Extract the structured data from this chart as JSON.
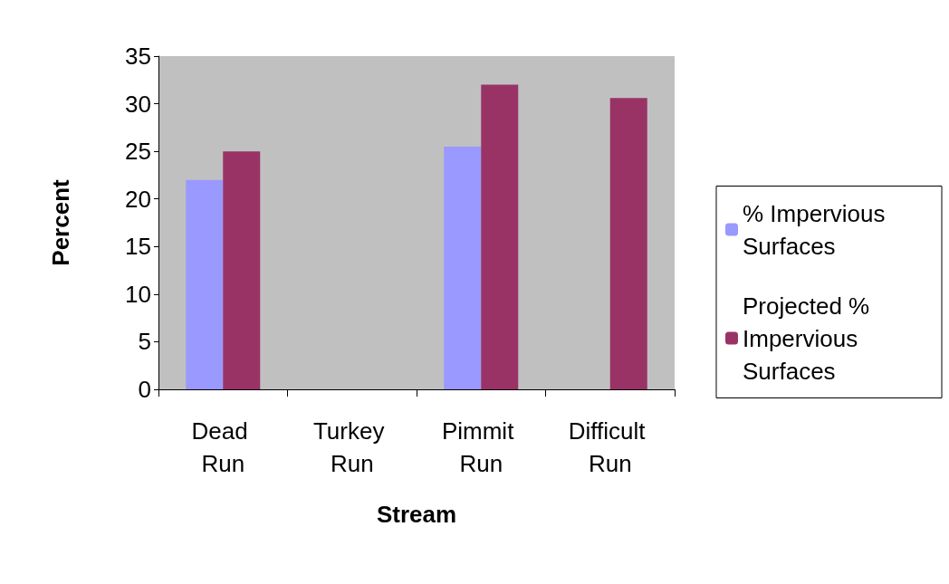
{
  "chart_data": {
    "type": "bar",
    "xlabel": "Stream",
    "ylabel": "Percent",
    "categories": [
      "Dead Run",
      "Turkey Run",
      "Pimmit Run",
      "Difficult Run"
    ],
    "series": [
      {
        "name": "% Impervious Surfaces",
        "color": "#9999ff",
        "values": [
          22,
          0,
          25.5,
          null
        ]
      },
      {
        "name": "Projected % Impervious Surfaces",
        "color": "#993366",
        "values": [
          25,
          0,
          32,
          30.6
        ]
      }
    ],
    "ylim": [
      0,
      35
    ],
    "yticks": [
      0,
      5,
      10,
      15,
      20,
      25,
      30,
      35
    ],
    "grid": false,
    "legend": "right"
  }
}
